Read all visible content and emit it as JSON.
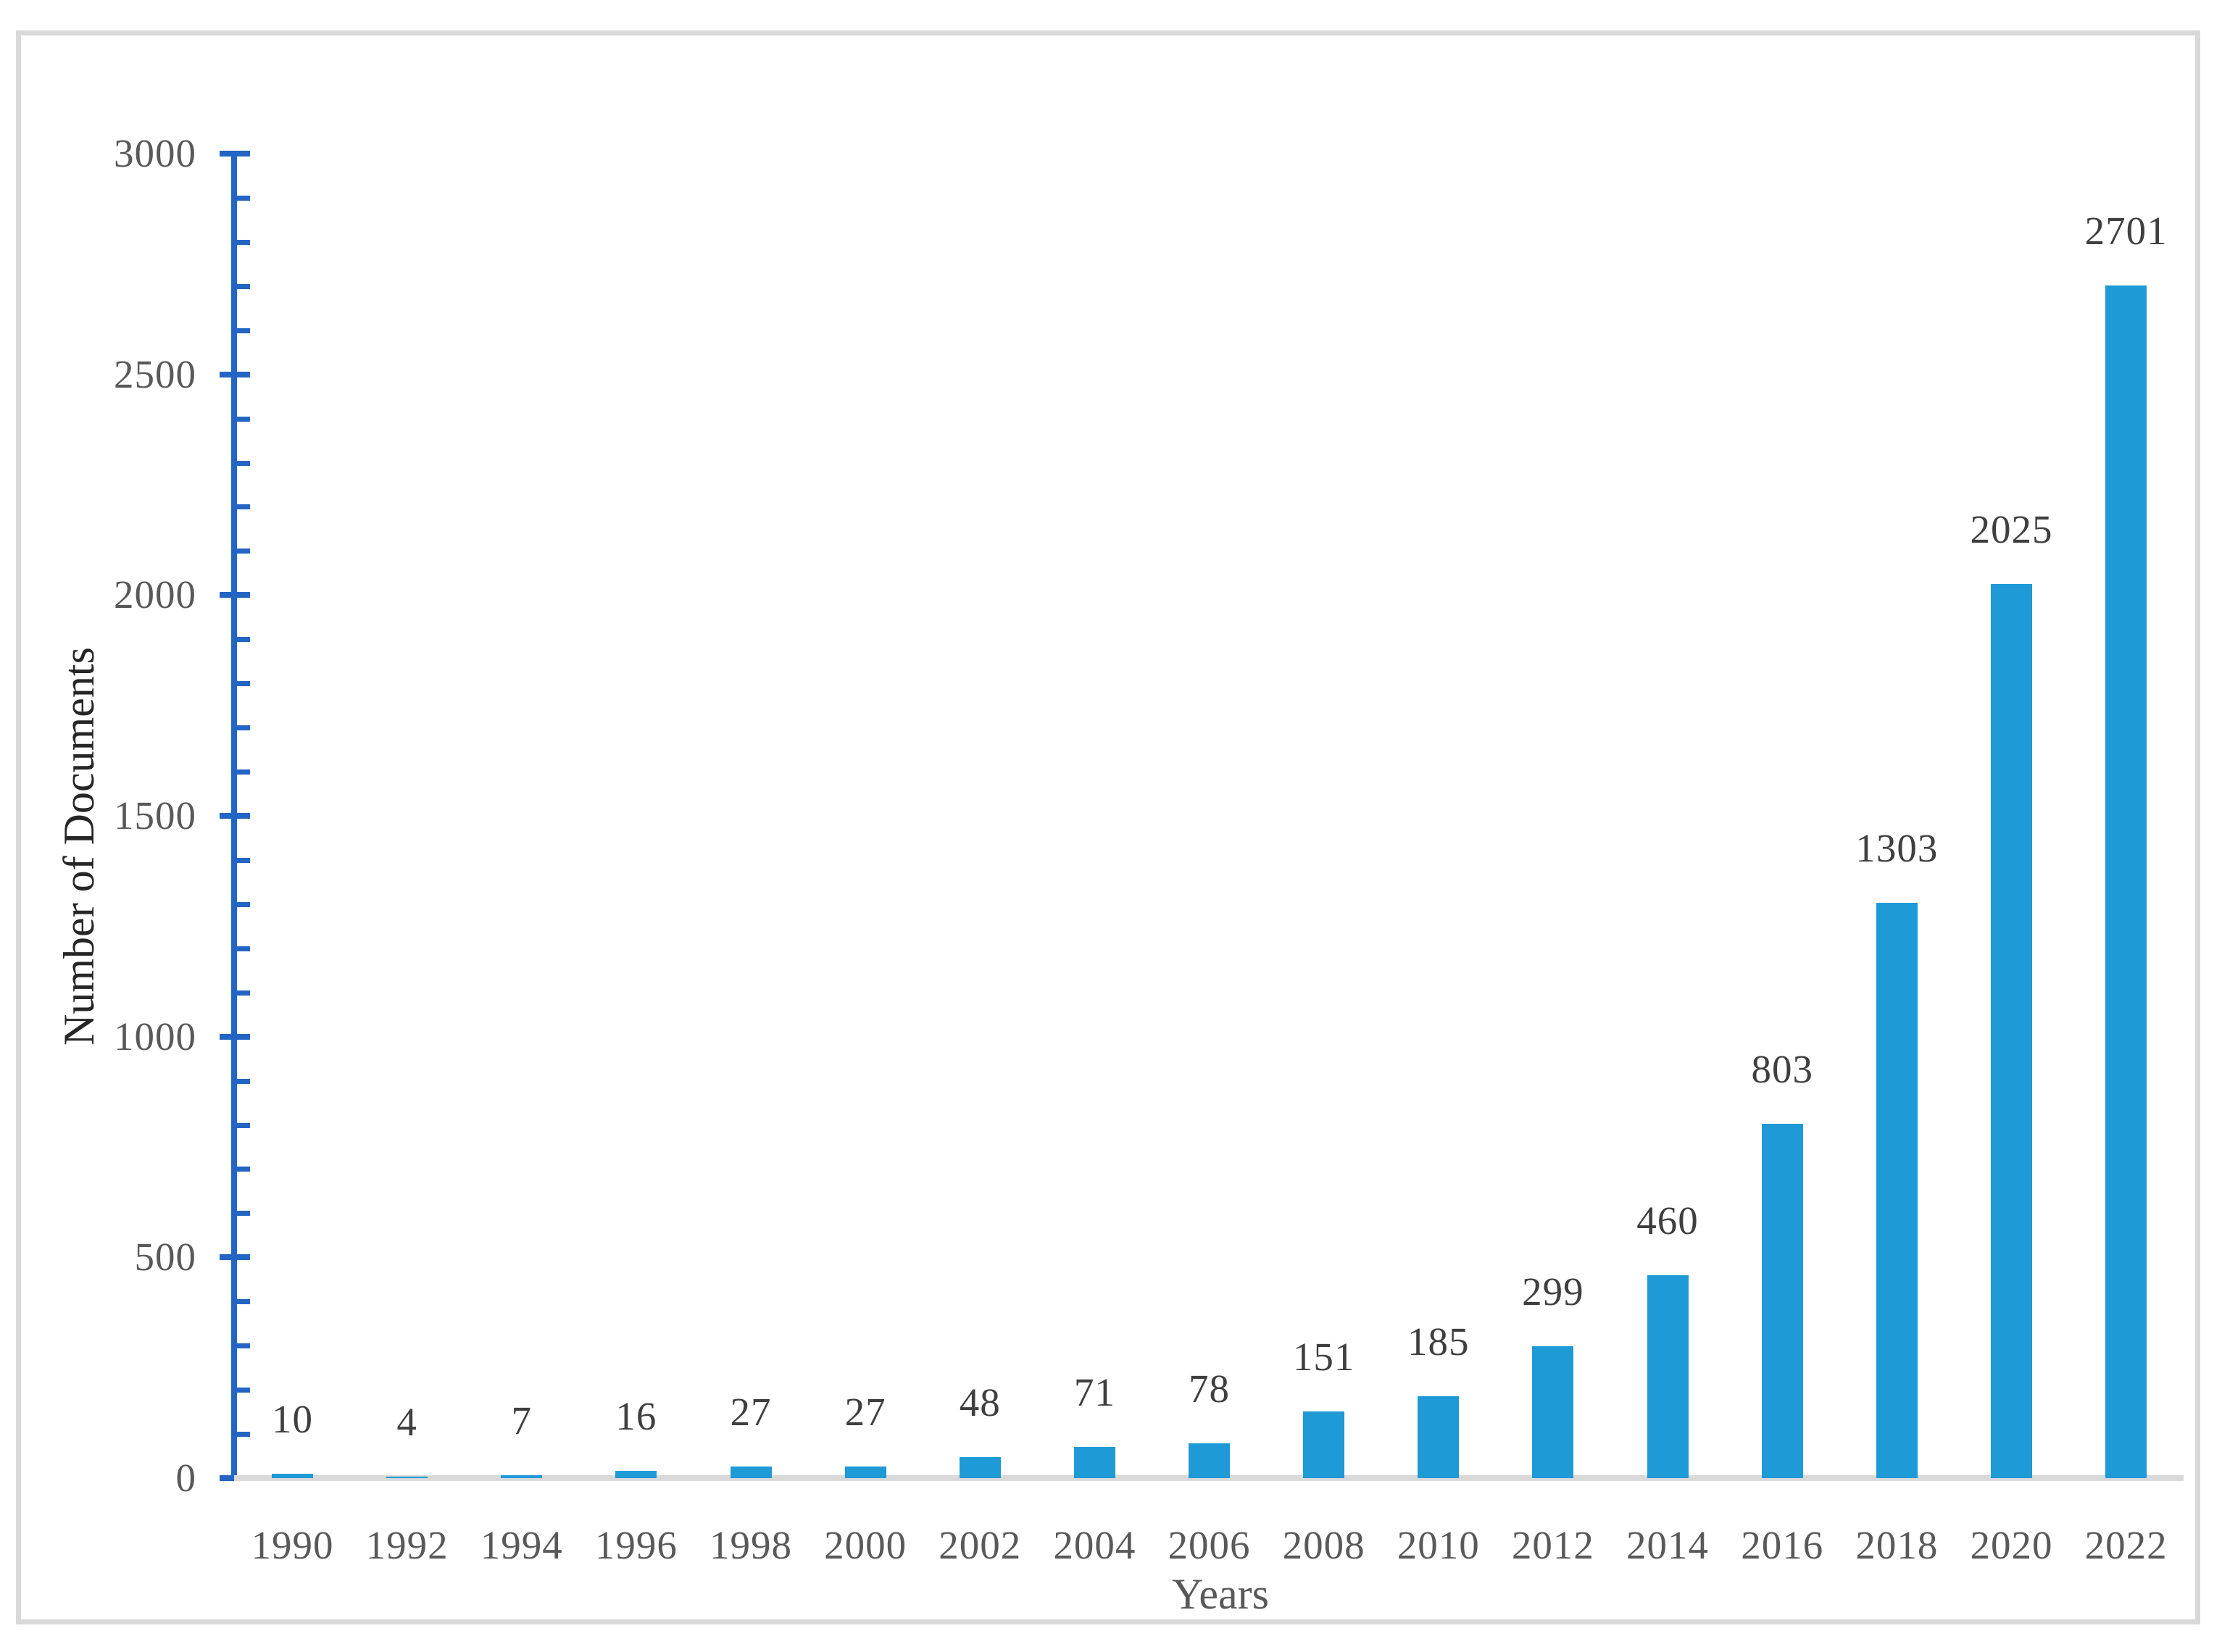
{
  "figure": {
    "background_color": "#ffffff",
    "border_color": "#d9d9d9"
  },
  "chart_data": {
    "type": "bar",
    "title": "",
    "xlabel": "Years",
    "ylabel": "Number of Documents",
    "categories": [
      "1990",
      "1992",
      "1994",
      "1996",
      "1998",
      "2000",
      "2002",
      "2004",
      "2006",
      "2008",
      "2010",
      "2012",
      "2014",
      "2016",
      "2018",
      "2020",
      "2022"
    ],
    "values": [
      10,
      4,
      7,
      16,
      27,
      27,
      48,
      71,
      78,
      151,
      185,
      299,
      460,
      803,
      1303,
      2025,
      2701
    ],
    "data_labels_visible": true,
    "ylim": [
      0,
      3000
    ],
    "yticks": [
      0,
      500,
      1000,
      1500,
      2000,
      2500,
      3000
    ],
    "minor_tick_step": 100,
    "grid": false,
    "legend_position": "none",
    "bar_color": "#1e9ad6",
    "axis_line_color": "#2365c4",
    "baseline_color": "#d9d9d9",
    "tick_label_color": "#595959",
    "data_label_color": "#3f3f3f",
    "x_title_color": "#595959",
    "y_title_color": "#262626"
  }
}
